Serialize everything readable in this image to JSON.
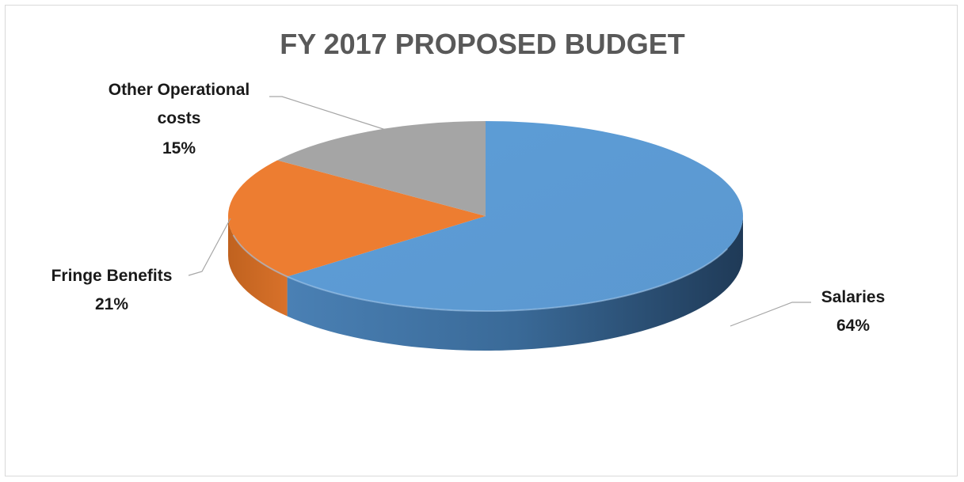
{
  "chart_data": {
    "type": "pie",
    "title": "FY 2017 PROPOSED BUDGET",
    "slices": [
      {
        "label": "Salaries",
        "value": 64,
        "value_label": "64%",
        "color": "#5b9bd5"
      },
      {
        "label": "Fringe Benefits",
        "value": 21,
        "value_label": "21%",
        "color": "#ed7d31"
      },
      {
        "label": "Other Operational costs",
        "label_lines": [
          "Other Operational",
          "costs"
        ],
        "value": 15,
        "value_label": "15%",
        "color": "#a5a5a5"
      }
    ],
    "style": "3d",
    "legend": "none"
  }
}
